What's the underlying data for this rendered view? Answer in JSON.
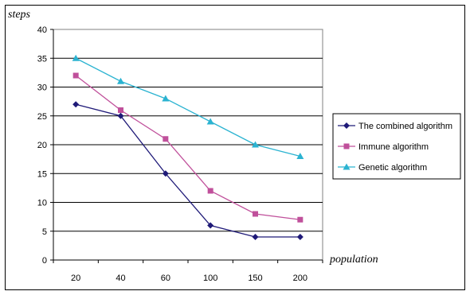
{
  "chart_data": {
    "type": "line",
    "categories": [
      "20",
      "40",
      "60",
      "100",
      "150",
      "200"
    ],
    "series": [
      {
        "name": "The combined algorithm",
        "values": [
          27,
          25,
          15,
          6,
          4,
          4
        ],
        "color": "#1f1a78",
        "marker": "diamond"
      },
      {
        "name": "Immune algorithm",
        "values": [
          32,
          26,
          21,
          12,
          8,
          7
        ],
        "color": "#c0509b",
        "marker": "square"
      },
      {
        "name": "Genetic algorithm",
        "values": [
          35,
          31,
          28,
          24,
          20,
          18
        ],
        "color": "#2bb3d1",
        "marker": "triangle"
      }
    ],
    "xlabel": "population",
    "ylabel": "steps",
    "ylim": [
      0,
      40
    ],
    "yticks": [
      0,
      5,
      10,
      15,
      20,
      25,
      30,
      35,
      40
    ],
    "grid": "horizontal",
    "legend_position": "right"
  }
}
